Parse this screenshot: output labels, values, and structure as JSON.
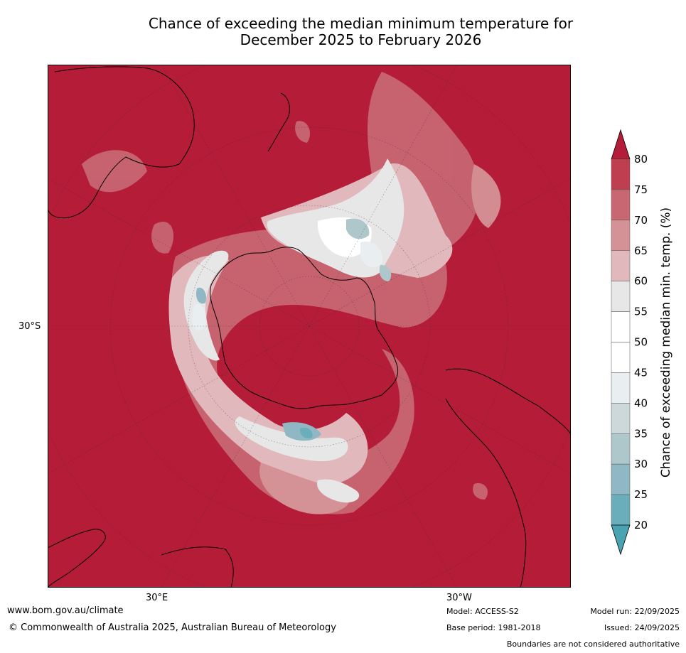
{
  "title": {
    "line1": "Chance of exceeding the median minimum temperature for",
    "line2": "December 2025 to February 2026"
  },
  "map": {
    "axis_labels": {
      "lat": "30°S",
      "lon_left": "30°E",
      "lon_right": "30°W"
    }
  },
  "colorbar": {
    "label": "Chance of exceeding median min. temp. (%)",
    "ticks": [
      "80",
      "75",
      "70",
      "65",
      "60",
      "55",
      "50",
      "45",
      "40",
      "35",
      "30",
      "25",
      "20"
    ],
    "colors": {
      "ge80": "#b41c37",
      "75-80": "#bf3f50",
      "70-75": "#c86672",
      "65-70": "#d49297",
      "60-65": "#e1b9bc",
      "55-60": "#e7e7e7",
      "50-55": "#ffffff",
      "45-50": "#ffffff",
      "40-45": "#e9eef0",
      "35-40": "#ccd8da",
      "30-35": "#aec7cb",
      "25-30": "#8fb8c4",
      "20-25": "#6aaebb",
      "le20": "#4aa3b3"
    }
  },
  "footer": {
    "website": "www.bom.gov.au/climate",
    "copyright": "© Commonwealth of Australia 2025, Australian Bureau of Meteorology",
    "model": "Model: ACCESS-S2",
    "base_period": "Base period: 1981-2018",
    "model_run": "Model run: 22/09/2025",
    "issued": "Issued: 24/09/2025",
    "disclaimer": "Boundaries are not considered authoritative"
  }
}
